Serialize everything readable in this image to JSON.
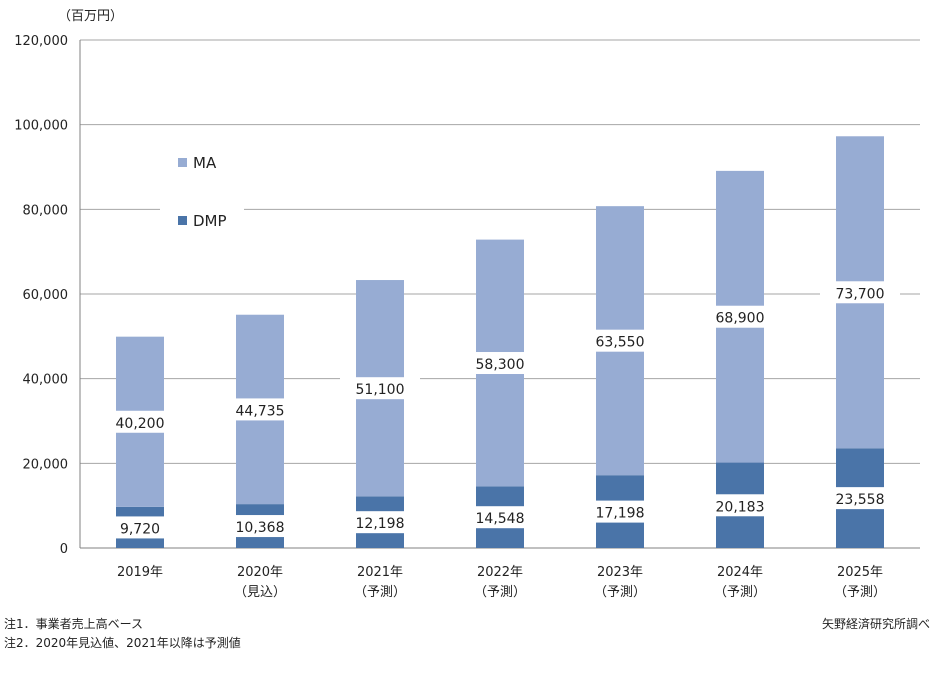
{
  "chart_data": {
    "type": "bar",
    "stacked": true,
    "unit_label": "（百万円）",
    "categories": [
      [
        "2019年"
      ],
      [
        "2020年",
        "（見込）"
      ],
      [
        "2021年",
        "（予測）"
      ],
      [
        "2022年",
        "（予測）"
      ],
      [
        "2023年",
        "（予測）"
      ],
      [
        "2024年",
        "（予測）"
      ],
      [
        "2025年",
        "（予測）"
      ]
    ],
    "series": [
      {
        "name": "DMP",
        "color": "#4a74a8",
        "values": [
          9720,
          10368,
          12198,
          14548,
          17198,
          20183,
          23558
        ],
        "labels": [
          "9,720",
          "10,368",
          "12,198",
          "14,548",
          "17,198",
          "20,183",
          "23,558"
        ]
      },
      {
        "name": "MA",
        "color": "#97acd3",
        "values": [
          40200,
          44735,
          51100,
          58300,
          63550,
          68900,
          73700
        ],
        "labels": [
          "40,200",
          "44,735",
          "51,100",
          "58,300",
          "63,550",
          "68,900",
          "73,700"
        ]
      }
    ],
    "legend_order": [
      "MA",
      "DMP"
    ],
    "legend_position": "top-left",
    "ylim": [
      0,
      120000
    ],
    "yticks": [
      "0",
      "20,000",
      "40,000",
      "60,000",
      "80,000",
      "100,000",
      "120,000"
    ],
    "grid": true
  },
  "notes": {
    "note1": "注1．事業者売上高ベース",
    "note2": "注2．2020年見込値、2021年以降は予測値",
    "credit": "矢野経済研究所調べ"
  }
}
